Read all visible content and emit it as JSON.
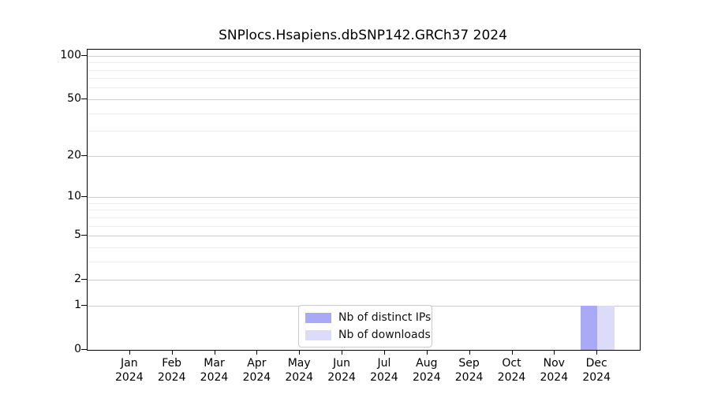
{
  "chart_data": {
    "type": "bar",
    "title": "SNPlocs.Hsapiens.dbSNP142.GRCh37 2024",
    "xlabel": "",
    "ylabel": "",
    "year": "2024",
    "categories": [
      "Jan",
      "Feb",
      "Mar",
      "Apr",
      "May",
      "Jun",
      "Jul",
      "Aug",
      "Sep",
      "Oct",
      "Nov",
      "Dec"
    ],
    "series": [
      {
        "name": "Nb of distinct IPs",
        "color": "#a9a9f5",
        "values": [
          0,
          0,
          0,
          0,
          0,
          0,
          0,
          0,
          0,
          0,
          0,
          1
        ]
      },
      {
        "name": "Nb of downloads",
        "color": "#dcdcf8",
        "values": [
          0,
          0,
          0,
          0,
          0,
          0,
          0,
          0,
          0,
          0,
          0,
          1
        ]
      }
    ],
    "scale": "log1p",
    "ylim": [
      0,
      110
    ],
    "y_ticks": [
      0,
      1,
      2,
      5,
      10,
      20,
      50,
      100
    ],
    "y_minor_ticks": [
      3,
      4,
      6,
      7,
      8,
      9,
      30,
      40,
      60,
      70,
      80,
      90
    ],
    "grid": "on",
    "legend_position": "lower center"
  },
  "colors": {
    "major_grid": "#cccccc",
    "minor_grid": "#ededed",
    "spine": "#000000",
    "background": "#ffffff"
  }
}
